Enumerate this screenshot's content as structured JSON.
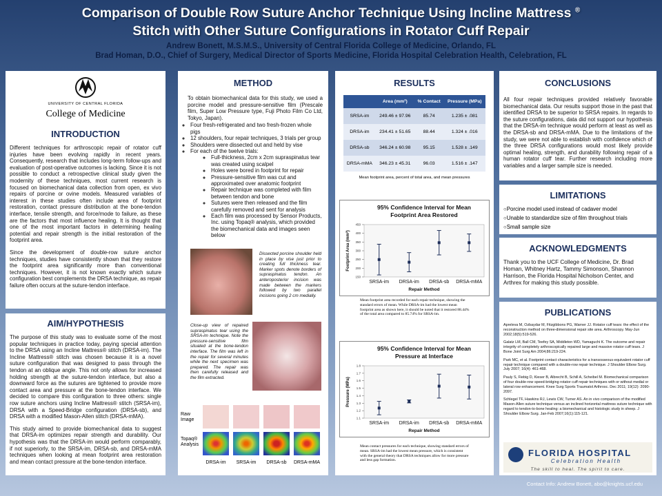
{
  "header": {
    "title": [
      "Comparison of Double Row Suture Anchor Technique Using Incline Mattress",
      "Stitch with Other Suture Configurations in Rotator Cuff Repair"
    ],
    "title_mark": "®",
    "authors": [
      "Andrew Bonett, M.S.M.S., University of Central Florida College of Medicine, Orlando, FL",
      "Brad Homan, D.O., Chief of Surgery, Medical Director of Sports Medicine, Florida Hospital Celebration Health, Celebration, FL"
    ]
  },
  "ucf_logo": {
    "university": "UNIVERSITY OF CENTRAL FLORIDA",
    "college": "College of Medicine"
  },
  "introduction": {
    "heading": "INTRODUCTION",
    "paragraphs": [
      "Different techniques for arthroscopic repair of rotator cuff injuries have been evolving rapidly in recent years. Consequently, research that includes long-term follow-ups and evaluation of post-operative outcomes is lacking. Since it is not possible to conduct a retrospective clinical study given the modernity of these techniques, most current research is focused on biomechanical data collection from open, ex vivo repairs of porcine or ovine models. Measured variables of interest in these studies often include area of footprint restoration, contact pressure distribution at the bone-tendon interface, tensile strength, and force/mode to failure, as these are the factors that most influence healing. It is thought that one of the most important factors in determining healing potential and repair strength is the initial restoration of the footprint area.",
      "Since the development of double-row suture anchor techniques, studies have consistently shown that they restore the footprint area significantly more than conventional techniques. However, it is not known exactly which suture configuration best complements the DRSA technique, as repair failure often occurs at the suture-tendon interface."
    ]
  },
  "aim": {
    "heading": "AIM/HYPOTHESIS",
    "paragraphs": [
      "The purpose of this study was to evaluate some of the most popular techniques in practice today, paying special attention to the DRSA using an Incline Mattress® stitch (DRSA-im). The Incline Mattress® stitch was chosen because it is a novel suture configuration that was designed to pass through the tendon at an oblique angle. This not only allows for increased holding strength at the suture-tendon interface, but also a downward force as the sutures are tightened to provide more contact area and pressure at the bone-tendon interface. We decided to compare this configuration to three others: single row suture anchors using Incline Mattress® stitch (SRSA-im), DRSA with a Speed-Bridge configuration (DRSA-sb), and DRSA with a modified Mason-Allen stitch (DRSA-mMA).",
      "This study aimed to provide biomechanical data to suggest that DRSA-im optimizes repair strength and durability. Our hypothesis was that the DRSA-im would perform comparably, if not superiorly, to the SRSA-im, DRSA-sb, and DRSA-mMA techniques when looking at mean footprint area restoration and mean contact pressure at the bone-tendon interface."
    ]
  },
  "method": {
    "heading": "METHOD",
    "intro": "To obtain biomechanical data for this study, we used a porcine model and pressure-sensitive film (Prescale film, Super Low Pressure type, Fuji Photo Film Co Ltd, Tokyo, Japan).",
    "bullets": [
      "Four fresh-refrigerated and two fresh-frozen whole pigs",
      "12 shoulders, four repair techniques, 3 trials per group",
      "Shoulders were dissected out and held by vise",
      "For each of the twelve trials:"
    ],
    "sub_bullets": [
      "Full-thickness, 2cm x 2cm supraspinatus tear was created using scalpel",
      "Holes were bored in footprint for repair",
      "Pressure-sensitive film was cut and approximated over anatomic footprint",
      "Repair technique was completed with film between tendon and bone",
      "Sutures were then released and the film carefully removed and sent for analysis",
      "Each film was processed by Sensor Products, Inc. using Topaq® analysis, which provided the biomechanical data and images seen below"
    ],
    "caption_1": "Dissected porcine shoulder held in place by vise just prior to creating full thickness tear. Marker spots denote borders of supraspinatus tendon. An anteroposterior incision was made between the markers followed by two parallel incisions going 2 cm medially.",
    "caption_2": "Close-up view of repaired supraspinatus tear using the SRSA-im technique. Note the pressure-sensitive film situated at the bone-tendon interface. The film was left in the repair for several minutes while the next specimen was prepared. The repair was then carefully released and the film extracted.",
    "row_labels": [
      "Raw Image",
      "Topaq® Analysis"
    ],
    "image_labels": [
      "DRSA-im",
      "SRSA-im",
      "DRSA-sb",
      "DRSA-mMA"
    ]
  },
  "results": {
    "heading": "RESULTS",
    "table": {
      "columns": [
        "",
        "Area (mm²)",
        "% Contact",
        "Pressure (MPa)"
      ],
      "rows": [
        [
          "SRSA-im",
          "249.46 ± 97.96",
          "85.74",
          "1.235 ± .081"
        ],
        [
          "DRSA-im",
          "234.41 ± 51.65",
          "88.44",
          "1.324 ± .016"
        ],
        [
          "DRSA-sb",
          "346.24 ± 60.98",
          "95.15",
          "1.528 ± .149"
        ],
        [
          "DRSA-mMA",
          "346.23 ± 45.31",
          "96.03",
          "1.516 ± .147"
        ]
      ]
    },
    "table_caption": "Mean footprint area, percent of total area, and mean pressures",
    "charts": [
      {
        "type": "errorbar",
        "title": [
          "95% Confidence Interval for Mean",
          "Footprint Area Restored"
        ],
        "categories": [
          "SRSA-im",
          "DRSA-im",
          "DRSA-sb",
          "DRSA-mMA"
        ],
        "values": [
          249.46,
          234.41,
          346.24,
          346.23
        ],
        "errors": [
          88,
          55,
          70,
          50
        ],
        "ylim": [
          150,
          450
        ],
        "yticks": [
          150,
          200,
          250,
          300,
          350,
          400,
          450
        ],
        "ylabel": "Footprint Area (mm²)",
        "xlabel": "Repair Method",
        "color": "#1f2f5a"
      },
      {
        "type": "errorbar",
        "title": [
          "95% Confidence Interval for Mean",
          "Pressure at Interface"
        ],
        "categories": [
          "SRSA-im",
          "DRSA-im",
          "DRSA-sb",
          "DRSA-mMA"
        ],
        "values": [
          1.235,
          1.324,
          1.528,
          1.516
        ],
        "errors": [
          0.09,
          0.02,
          0.16,
          0.16
        ],
        "ylim": [
          1.1,
          1.8
        ],
        "yticks": [
          1.1,
          1.2,
          1.3,
          1.4,
          1.5,
          1.6,
          1.7,
          1.8
        ],
        "ylabel": "Pressure (MPa)",
        "xlabel": "Repair Method",
        "color": "#1f2f5a"
      }
    ],
    "chart_captions": [
      "Mean footprint area recorded for each repair technique, showing the standard errors of mean. While DRSA-im had the lowest mean footprint area as shown here, it should be noted that it restored 88.44% of the total area compared to 85.74% for SRSA-im.",
      "Mean contact pressures for each technique, showing standard errors of mean. SRSA-im had the lowest mean pressure, which is consistent with the general theory that DRSA techniques allow for more pressure and less gap formation."
    ]
  },
  "conclusions": {
    "heading": "CONCLUSIONS",
    "text": "All four repair techniques provided relatively favorable biomechanical data. Our results support those in the past that identified DRSA to be superior to SRSA repairs. In regards to the suture configurations, data did not support our hypothesis that the DRSA-im technique would perform at least as well as the DRSA-sb and DRSA-mMA. Due to the limitations of the study, we were not able to establish with confidence which of the three DRSA configurations would most likely provide optimal healing, strength, and durability following repair of a human rotator cuff tear. Further research including more variables and a larger sample size is needed."
  },
  "limitations": {
    "heading": "LIMITATIONS",
    "items": [
      "Porcine model used instead of cadaver model",
      "Unable to standardize size of film throughout trials",
      "Small sample size"
    ]
  },
  "acknowledgments": {
    "heading": "ACKNOWLEDGMENTS",
    "text": "Thank you to the UCF College of Medicine, Dr. Brad Homan, Whitney Hartz, Tammy Simonson, Shannon Harrison, the Florida Hospital Nicholson Center, and Arthrex for making this study possible."
  },
  "publications": {
    "heading": "PUBLICATIONS",
    "items": [
      "Apreleva M, Ozbaydar M, Fitzgibbons PG, Warner JJ. Rotator cuff tears: the effect of the reconstruction method on three-dimensional repair site area. Arthroscopy. May-Jun 2002;18(5):519-526.",
      "Galatz LM, Ball CM, Teefey SA, Middleton WD, Yamaguchi K. The outcome and repair integrity of completely arthroscopically repaired large and massive rotator cuff tears. J Bone Joint Surg Am 2004;86:219-224.",
      "Park MC, et al. Footprint contact characteristics for a transosseous-equivalent rotator cuff repair technique compared with a double-row repair technique. J Shoulder Elbow Surg. July 2007; 16(4): 461-468.",
      "Pauly S, Fiebig D, Kieser B, Albrecht B, Schill A, Scheibel M. Biomechanical comparison of four double-row speed-bridging rotator cuff repair techniques with or without medial or lateral row enhancement. Knee Surg Sports Traumatol Arthrosc. Dec 2011; 19(12): 2090-2097.",
      "Schlegel TF, Hawkins RJ, Lewis CW, Turner AS. An in vivo comparison of the modified Mason-Allen suture technique versus an inclined horizontal mattress suture technique with regard to tendon-to-bone healing: a biomechanical and histologic study in sheep. J Shoulder Elbow Surg. Jan-Feb 2007;16(1):115-121."
    ]
  },
  "fh_logo": {
    "name": "FLORIDA HOSPITAL",
    "sub": "Celebration Health",
    "tagline": "The skill to heal. The spirit to care."
  },
  "contact": "Contact Info: Andrew Bonett, abo@knights.ucf.edu"
}
